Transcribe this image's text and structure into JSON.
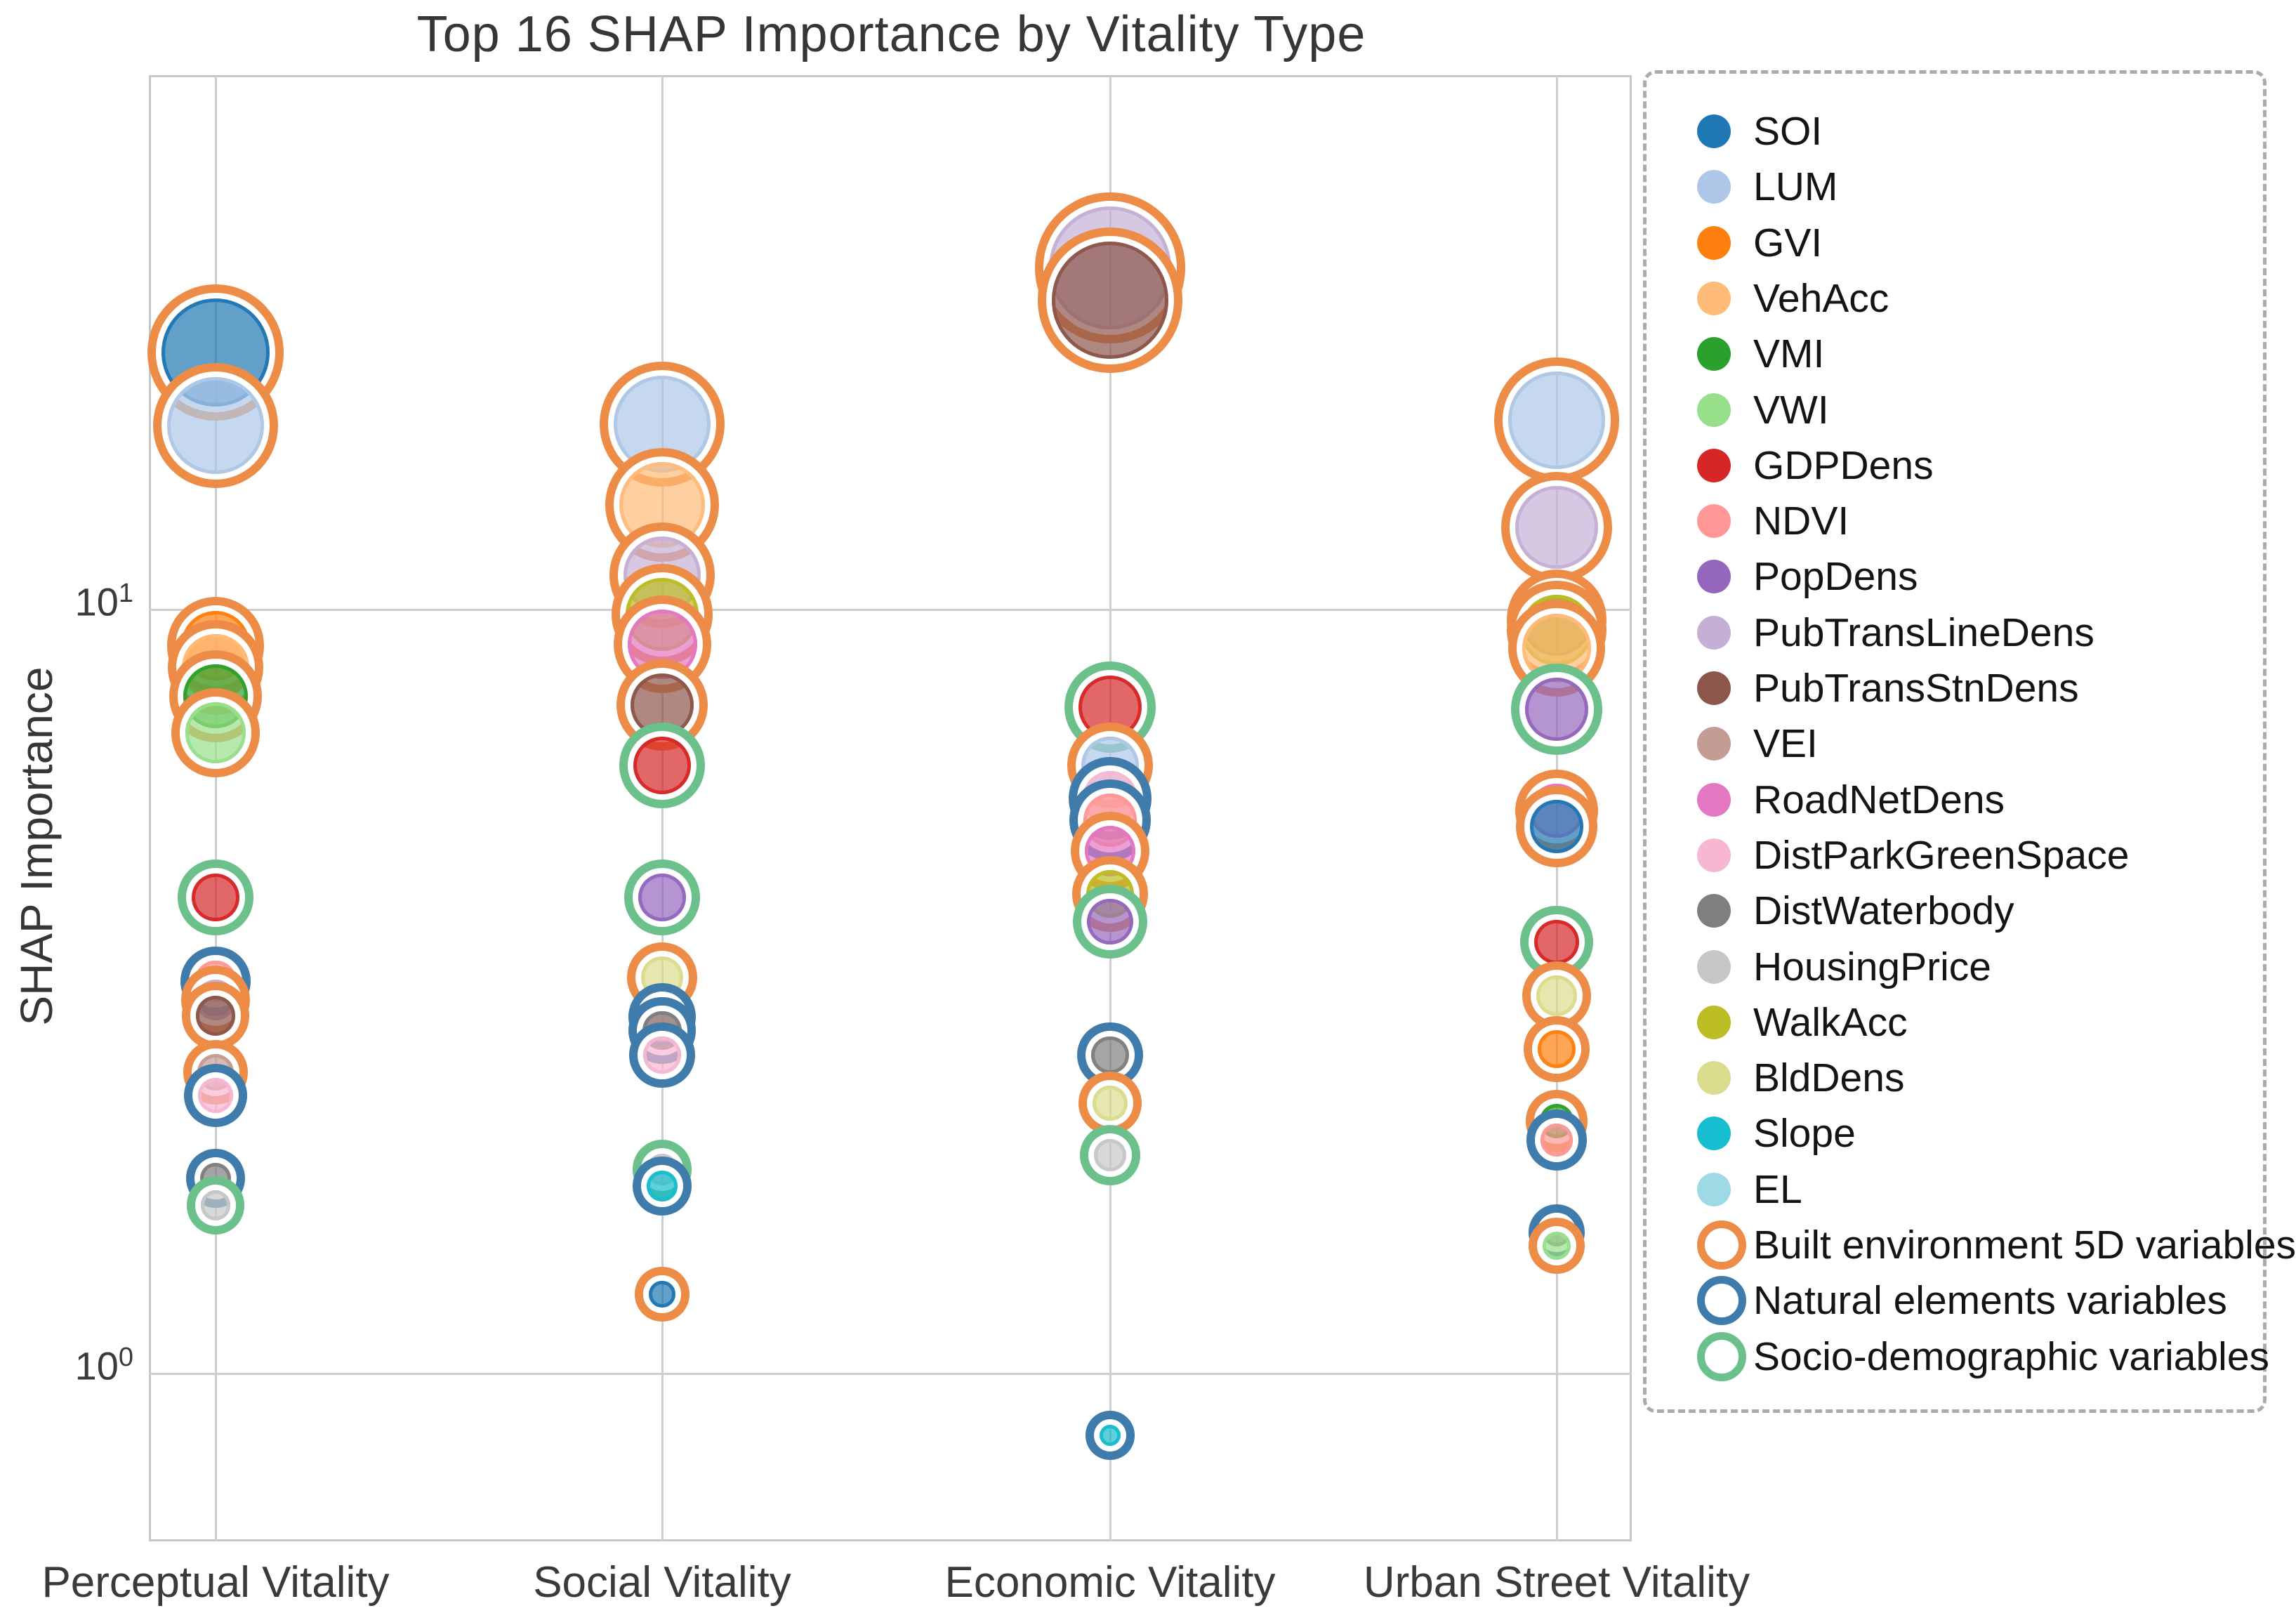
{
  "title": "Top 16 SHAP Importance by Vitality Type",
  "axes": {
    "ylabel": "SHAP Importance",
    "yticks": [
      {
        "base": "10",
        "exp": "1",
        "value": 10
      },
      {
        "base": "10",
        "exp": "0",
        "value": 1
      }
    ],
    "categories": [
      "Perceptual Vitality",
      "Social Vitality",
      "Economic Vitality",
      "Urban Street Vitality"
    ]
  },
  "legend": {
    "items": [
      {
        "label": "SOI",
        "marker": "dot",
        "color": "#1f77b4"
      },
      {
        "label": "LUM",
        "marker": "dot",
        "color": "#aec7e8"
      },
      {
        "label": "GVI",
        "marker": "dot",
        "color": "#ff7f0e"
      },
      {
        "label": "VehAcc",
        "marker": "dot",
        "color": "#ffbb78"
      },
      {
        "label": "VMI",
        "marker": "dot",
        "color": "#2ca02c"
      },
      {
        "label": "VWI",
        "marker": "dot",
        "color": "#98df8a"
      },
      {
        "label": "GDPDens",
        "marker": "dot",
        "color": "#d62728"
      },
      {
        "label": "NDVI",
        "marker": "dot",
        "color": "#ff9896"
      },
      {
        "label": "PopDens",
        "marker": "dot",
        "color": "#9467bd"
      },
      {
        "label": "PubTransLineDens",
        "marker": "dot",
        "color": "#c5b0d5"
      },
      {
        "label": "PubTransStnDens",
        "marker": "dot",
        "color": "#8c564b"
      },
      {
        "label": "VEI",
        "marker": "dot",
        "color": "#c49c94"
      },
      {
        "label": "RoadNetDens",
        "marker": "dot",
        "color": "#e377c2"
      },
      {
        "label": "DistParkGreenSpace",
        "marker": "dot",
        "color": "#f7b6d2"
      },
      {
        "label": "DistWaterbody",
        "marker": "dot",
        "color": "#7f7f7f"
      },
      {
        "label": "HousingPrice",
        "marker": "dot",
        "color": "#c7c7c7"
      },
      {
        "label": "WalkAcc",
        "marker": "dot",
        "color": "#bcbd22"
      },
      {
        "label": "BldDens",
        "marker": "dot",
        "color": "#dbdb8d"
      },
      {
        "label": "Slope",
        "marker": "dot",
        "color": "#17becf"
      },
      {
        "label": "EL",
        "marker": "dot",
        "color": "#9edae5"
      },
      {
        "label": "Built environment 5D variables",
        "marker": "ring",
        "color": "#ed8c47"
      },
      {
        "label": "Natural elements variables",
        "marker": "ring",
        "color": "#3f7cab"
      },
      {
        "label": "Socio-demographic variables",
        "marker": "ring",
        "color": "#6cc08b"
      }
    ]
  },
  "chart_data": {
    "type": "scatter",
    "subtype": "bubble",
    "title": "Top 16 SHAP Importance by Vitality Type",
    "xlabel": "",
    "ylabel": "SHAP Importance",
    "yscale": "log",
    "ylim": [
      0.6,
      50
    ],
    "yticks": [
      1,
      10
    ],
    "grid": true,
    "legend_position": "right-outside",
    "categories": [
      "Perceptual Vitality",
      "Social Vitality",
      "Economic Vitality",
      "Urban Street Vitality"
    ],
    "variables": {
      "SOI": "#1f77b4",
      "LUM": "#aec7e8",
      "GVI": "#ff7f0e",
      "VehAcc": "#ffbb78",
      "VMI": "#2ca02c",
      "VWI": "#98df8a",
      "GDPDens": "#d62728",
      "NDVI": "#ff9896",
      "PopDens": "#9467bd",
      "PubTransLineDens": "#c5b0d5",
      "PubTransStnDens": "#8c564b",
      "VEI": "#c49c94",
      "RoadNetDens": "#e377c2",
      "DistParkGreenSpace": "#f7b6d2",
      "DistWaterbody": "#7f7f7f",
      "HousingPrice": "#c7c7c7",
      "WalkAcc": "#bcbd22",
      "BldDens": "#dbdb8d",
      "Slope": "#17becf",
      "EL": "#9edae5"
    },
    "ring_colors": {
      "built": "#ed8c47",
      "natural": "#3f7cab",
      "socio": "#6cc08b"
    },
    "ring_labels": {
      "built": "Built environment 5D variables",
      "natural": "Natural elements variables",
      "socio": "Socio-demographic variables"
    },
    "columns": [
      {
        "category": "Perceptual Vitality",
        "points": [
          {
            "var": "SOI",
            "value": 21.7,
            "ring": "built"
          },
          {
            "var": "LUM",
            "value": 17.4,
            "ring": "built"
          },
          {
            "var": "GVI",
            "value": 8.96,
            "ring": "built"
          },
          {
            "var": "VehAcc",
            "value": 8.4,
            "ring": "built"
          },
          {
            "var": "VMI",
            "value": 7.7,
            "ring": "built"
          },
          {
            "var": "VWI",
            "value": 6.9,
            "ring": "built"
          },
          {
            "var": "GDPDens",
            "value": 4.2,
            "ring": "socio"
          },
          {
            "var": "NDVI",
            "value": 3.26,
            "ring": "natural"
          },
          {
            "var": "PubTransLineDens",
            "value": 3.08,
            "ring": "built"
          },
          {
            "var": "PubTransStnDens",
            "value": 2.94,
            "ring": "built"
          },
          {
            "var": "VEI",
            "value": 2.48,
            "ring": "built"
          },
          {
            "var": "DistParkGreenSpace",
            "value": 2.31,
            "ring": "natural"
          },
          {
            "var": "DistWaterbody",
            "value": 1.8,
            "ring": "natural"
          },
          {
            "var": "HousingPrice",
            "value": 1.66,
            "ring": "socio"
          }
        ]
      },
      {
        "category": "Social Vitality",
        "points": [
          {
            "var": "LUM",
            "value": 17.5,
            "ring": "built"
          },
          {
            "var": "VehAcc",
            "value": 13.7,
            "ring": "built"
          },
          {
            "var": "PubTransLineDens",
            "value": 11.1,
            "ring": "built"
          },
          {
            "var": "WalkAcc",
            "value": 9.85,
            "ring": "built"
          },
          {
            "var": "RoadNetDens",
            "value": 9.0,
            "ring": "built"
          },
          {
            "var": "PubTransStnDens",
            "value": 7.5,
            "ring": "built"
          },
          {
            "var": "GDPDens",
            "value": 6.25,
            "ring": "socio"
          },
          {
            "var": "PopDens",
            "value": 4.2,
            "ring": "socio"
          },
          {
            "var": "BldDens",
            "value": 3.3,
            "ring": "built"
          },
          {
            "var": "NDVI",
            "value": 2.93,
            "ring": "natural"
          },
          {
            "var": "DistWaterbody",
            "value": 2.81,
            "ring": "natural"
          },
          {
            "var": "DistParkGreenSpace",
            "value": 2.61,
            "ring": "natural"
          },
          {
            "var": "HousingPrice",
            "value": 1.85,
            "ring": "socio"
          },
          {
            "var": "Slope",
            "value": 1.76,
            "ring": "natural"
          },
          {
            "var": "SOI",
            "value": 1.27,
            "ring": "built"
          }
        ]
      },
      {
        "category": "Economic Vitality",
        "points": [
          {
            "var": "PubTransLineDens",
            "value": 28.0,
            "ring": "built"
          },
          {
            "var": "PubTransStnDens",
            "value": 25.4,
            "ring": "built"
          },
          {
            "var": "GDPDens",
            "value": 7.45,
            "ring": "socio"
          },
          {
            "var": "LUM",
            "value": 6.25,
            "ring": "built"
          },
          {
            "var": "DistParkGreenSpace",
            "value": 5.66,
            "ring": "natural"
          },
          {
            "var": "NDVI",
            "value": 5.3,
            "ring": "natural"
          },
          {
            "var": "RoadNetDens",
            "value": 4.83,
            "ring": "built"
          },
          {
            "var": "WalkAcc",
            "value": 4.24,
            "ring": "built"
          },
          {
            "var": "PopDens",
            "value": 3.9,
            "ring": "socio"
          },
          {
            "var": "DistWaterbody",
            "value": 2.61,
            "ring": "natural"
          },
          {
            "var": "BldDens",
            "value": 2.26,
            "ring": "built"
          },
          {
            "var": "HousingPrice",
            "value": 1.93,
            "ring": "socio"
          },
          {
            "var": "Slope",
            "value": 0.83,
            "ring": "natural"
          }
        ]
      },
      {
        "category": "Urban Street Vitality",
        "points": [
          {
            "var": "LUM",
            "value": 17.7,
            "ring": "built"
          },
          {
            "var": "PubTransLineDens",
            "value": 12.8,
            "ring": "built"
          },
          {
            "var": "PubTransStnDens",
            "value": 9.7,
            "ring": "built"
          },
          {
            "var": "WalkAcc",
            "value": 9.4,
            "ring": "built"
          },
          {
            "var": "VehAcc",
            "value": 8.9,
            "ring": "built"
          },
          {
            "var": "PopDens",
            "value": 7.4,
            "ring": "socio"
          },
          {
            "var": "RoadNetDens",
            "value": 5.45,
            "ring": "built"
          },
          {
            "var": "SOI",
            "value": 5.2,
            "ring": "built"
          },
          {
            "var": "GDPDens",
            "value": 3.67,
            "ring": "socio"
          },
          {
            "var": "BldDens",
            "value": 3.12,
            "ring": "built"
          },
          {
            "var": "GVI",
            "value": 2.66,
            "ring": "built"
          },
          {
            "var": "VMI",
            "value": 2.14,
            "ring": "built"
          },
          {
            "var": "NDVI",
            "value": 2.02,
            "ring": "natural"
          },
          {
            "var": "DistWaterbody",
            "value": 1.53,
            "ring": "natural"
          },
          {
            "var": "VWI",
            "value": 1.47,
            "ring": "built"
          }
        ]
      }
    ]
  }
}
